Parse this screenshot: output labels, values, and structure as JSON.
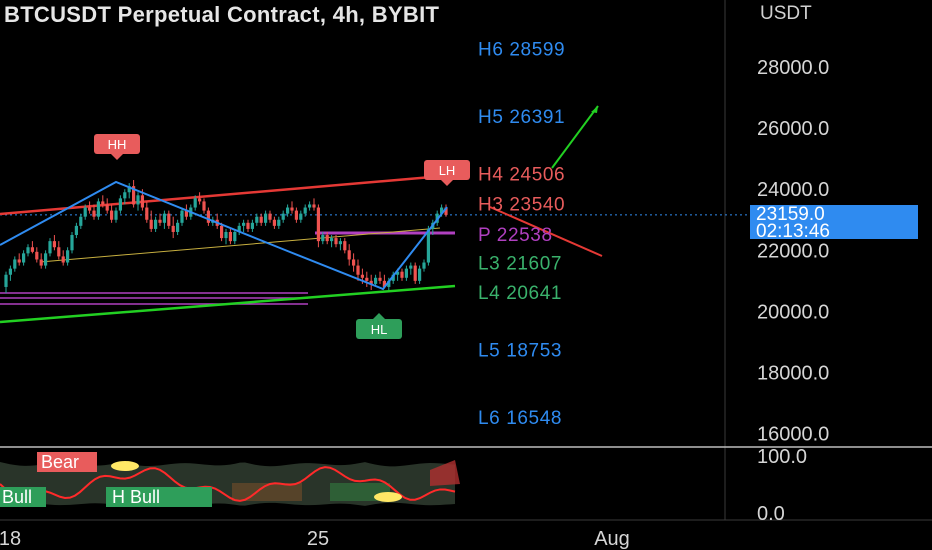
{
  "title": "BTCUSDT Perpetual Contract, 4h, BYBIT",
  "axis_unit": "USDT",
  "current_price": {
    "value": "23159.0",
    "countdown": "02:13:46"
  },
  "colors": {
    "background": "#000000",
    "up": "#26a69a",
    "down": "#ef5350",
    "channel_top": "#e53935",
    "channel_bottom": "#22d022",
    "zigzag": "#2f8bf0",
    "pivot": "#b040c0",
    "hh_label": "#e85c5c",
    "hl_label": "#2e9e5a",
    "resistance_text": "#e85c5c",
    "support_text": "#3ab26c",
    "projection": "#22d022"
  },
  "pivot_levels": [
    {
      "label": "H6 28599",
      "value": 28599,
      "color": "#2f8bf0"
    },
    {
      "label": "H5 26391",
      "value": 26391,
      "color": "#2f8bf0"
    },
    {
      "label": "H4 24506",
      "value": 24506,
      "color": "#e85c5c"
    },
    {
      "label": "H3 23540",
      "value": 23540,
      "color": "#e85c5c"
    },
    {
      "label": "P 22538",
      "value": 22538,
      "color": "#b040c0"
    },
    {
      "label": "L3 21607",
      "value": 21607,
      "color": "#3ab26c"
    },
    {
      "label": "L4 20641",
      "value": 20641,
      "color": "#3ab26c"
    },
    {
      "label": "L5 18753",
      "value": 18753,
      "color": "#2f8bf0"
    },
    {
      "label": "L6 16548",
      "value": 16548,
      "color": "#2f8bf0"
    }
  ],
  "markers": [
    {
      "text": "HH",
      "kind": "high"
    },
    {
      "text": "LH",
      "kind": "high"
    },
    {
      "text": "HL",
      "kind": "low"
    }
  ],
  "oscillator": {
    "labels": [
      "Bear",
      "Bull",
      "H Bull"
    ],
    "ticks": [
      "100.0",
      "0.0"
    ]
  },
  "x_ticks": [
    "18",
    "25",
    "Aug"
  ],
  "chart_data": {
    "type": "candlestick",
    "title": "BTCUSDT Perpetual Contract, 4h, BYBIT",
    "ylabel": "USDT",
    "y_ticks": [
      28000,
      26000,
      24000,
      22000,
      20000,
      18000,
      16000
    ],
    "ylim": [
      15650,
      29900
    ],
    "x_ticks": [
      "18",
      "25",
      "Aug"
    ],
    "current_price": 23159.0,
    "candles": [
      [
        20800,
        21300,
        20600,
        21200
      ],
      [
        21200,
        21500,
        21000,
        21400
      ],
      [
        21400,
        21800,
        21300,
        21700
      ],
      [
        21700,
        21900,
        21500,
        21600
      ],
      [
        21600,
        22000,
        21500,
        21900
      ],
      [
        21900,
        22200,
        21800,
        22100
      ],
      [
        22100,
        22300,
        21900,
        21950
      ],
      [
        21950,
        22100,
        21600,
        21700
      ],
      [
        21700,
        21900,
        21400,
        21500
      ],
      [
        21500,
        22000,
        21400,
        21900
      ],
      [
        21900,
        22400,
        21800,
        22300
      ],
      [
        22300,
        22500,
        22000,
        22100
      ],
      [
        22100,
        22300,
        21700,
        21800
      ],
      [
        21800,
        22000,
        21500,
        21600
      ],
      [
        21600,
        22100,
        21500,
        22000
      ],
      [
        22000,
        22600,
        21900,
        22500
      ],
      [
        22500,
        22900,
        22400,
        22800
      ],
      [
        22800,
        23200,
        22700,
        23100
      ],
      [
        23100,
        23500,
        23000,
        23400
      ],
      [
        23400,
        23600,
        23200,
        23300
      ],
      [
        23300,
        23500,
        23000,
        23100
      ],
      [
        23100,
        23700,
        23000,
        23600
      ],
      [
        23600,
        23800,
        23400,
        23500
      ],
      [
        23500,
        23700,
        23200,
        23300
      ],
      [
        23300,
        23500,
        22900,
        23000
      ],
      [
        23000,
        23400,
        22900,
        23300
      ],
      [
        23300,
        23800,
        23200,
        23700
      ],
      [
        23700,
        24000,
        23500,
        23900
      ],
      [
        23900,
        24200,
        23700,
        24100
      ],
      [
        24100,
        24300,
        23400,
        23500
      ],
      [
        23500,
        23900,
        23300,
        23800
      ],
      [
        23800,
        24000,
        23300,
        23400
      ],
      [
        23400,
        23600,
        22900,
        23000
      ],
      [
        23000,
        23300,
        22600,
        22700
      ],
      [
        22700,
        23100,
        22600,
        23000
      ],
      [
        23000,
        23200,
        22800,
        22900
      ],
      [
        22900,
        23300,
        22700,
        23200
      ],
      [
        23200,
        23300,
        22700,
        22800
      ],
      [
        22800,
        23100,
        22400,
        22600
      ],
      [
        22600,
        23000,
        22500,
        22900
      ],
      [
        22900,
        23400,
        22800,
        23300
      ],
      [
        23300,
        23500,
        23000,
        23100
      ],
      [
        23100,
        23500,
        23000,
        23400
      ],
      [
        23400,
        23800,
        23300,
        23700
      ],
      [
        23700,
        23900,
        23500,
        23600
      ],
      [
        23600,
        23700,
        23200,
        23300
      ],
      [
        23300,
        23400,
        22800,
        22900
      ],
      [
        22900,
        23100,
        22800,
        23000
      ],
      [
        23000,
        23200,
        22700,
        22800
      ],
      [
        22800,
        22900,
        22300,
        22400
      ],
      [
        22400,
        22700,
        22200,
        22600
      ],
      [
        22600,
        22700,
        22200,
        22300
      ],
      [
        22300,
        22700,
        22200,
        22600
      ],
      [
        22600,
        22900,
        22500,
        22800
      ],
      [
        22800,
        23000,
        22600,
        22900
      ],
      [
        22900,
        23000,
        22600,
        22700
      ],
      [
        22700,
        23000,
        22600,
        22900
      ],
      [
        22900,
        23200,
        22800,
        23100
      ],
      [
        23100,
        23200,
        22800,
        22900
      ],
      [
        22900,
        23300,
        22800,
        23200
      ],
      [
        23200,
        23300,
        22900,
        23000
      ],
      [
        23000,
        23100,
        22700,
        22800
      ],
      [
        22800,
        23100,
        22700,
        23000
      ],
      [
        23000,
        23300,
        22900,
        23200
      ],
      [
        23200,
        23500,
        23100,
        23400
      ],
      [
        23400,
        23600,
        23200,
        23300
      ],
      [
        23300,
        23400,
        22900,
        23000
      ],
      [
        23000,
        23300,
        22900,
        23200
      ],
      [
        23200,
        23500,
        23100,
        23400
      ],
      [
        23400,
        23600,
        23300,
        23500
      ],
      [
        23500,
        23700,
        23300,
        23400
      ],
      [
        23400,
        23500,
        22100,
        22300
      ],
      [
        22300,
        22600,
        22200,
        22500
      ],
      [
        22500,
        22600,
        22200,
        22300
      ],
      [
        22300,
        22500,
        22100,
        22400
      ],
      [
        22400,
        22500,
        22100,
        22200
      ],
      [
        22200,
        22400,
        22000,
        22300
      ],
      [
        22300,
        22400,
        21900,
        22000
      ],
      [
        22000,
        22200,
        21500,
        21700
      ],
      [
        21700,
        21900,
        21300,
        21500
      ],
      [
        21500,
        21700,
        21000,
        21200
      ],
      [
        21200,
        21400,
        20900,
        21100
      ],
      [
        21100,
        21300,
        20800,
        21000
      ],
      [
        21000,
        21200,
        20700,
        20900
      ],
      [
        20900,
        21200,
        20800,
        21100
      ],
      [
        21100,
        21300,
        20900,
        21000
      ],
      [
        21000,
        21200,
        20750,
        20800
      ],
      [
        20800,
        21100,
        20700,
        21000
      ],
      [
        21000,
        21300,
        20900,
        21200
      ],
      [
        21200,
        21400,
        21000,
        21300
      ],
      [
        21300,
        21400,
        21000,
        21100
      ],
      [
        21100,
        21500,
        21000,
        21400
      ],
      [
        21400,
        21600,
        21200,
        21500
      ],
      [
        21500,
        21600,
        20900,
        21000
      ],
      [
        21000,
        21500,
        20900,
        21400
      ],
      [
        21400,
        21700,
        21300,
        21600
      ],
      [
        21600,
        22800,
        21500,
        22700
      ],
      [
        22700,
        23000,
        22500,
        22900
      ],
      [
        22900,
        23300,
        22800,
        23200
      ],
      [
        23200,
        23500,
        23100,
        23400
      ],
      [
        23400,
        23500,
        23100,
        23159
      ]
    ]
  }
}
